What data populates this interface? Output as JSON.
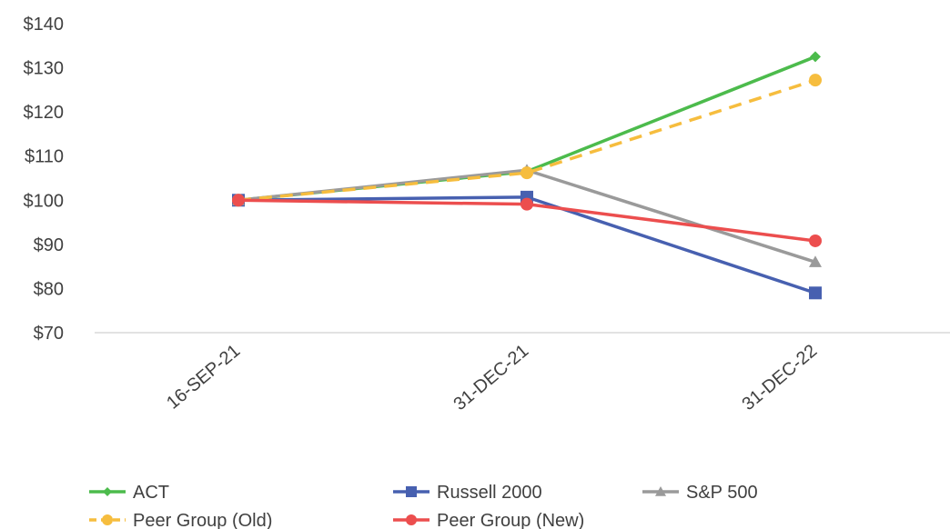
{
  "chart_data": {
    "type": "line",
    "categories": [
      "16-SEP-21",
      "31-DEC-21",
      "31-DEC-22"
    ],
    "y_tick_labels": [
      "$70",
      "$80",
      "$90",
      "$100",
      "$110",
      "$120",
      "$130",
      "$140"
    ],
    "ylim": [
      70,
      140
    ],
    "y_ticks": [
      70,
      80,
      90,
      100,
      110,
      120,
      130,
      140
    ],
    "grid": false,
    "legend_position": "bottom",
    "title": "",
    "xlabel": "",
    "ylabel": "",
    "series": [
      {
        "name": "ACT",
        "values": [
          100,
          106.5,
          132.5
        ],
        "color": "#4CBB4C",
        "marker": "diamond",
        "dash": false
      },
      {
        "name": "Russell 2000",
        "values": [
          100,
          100.7,
          79
        ],
        "color": "#4760B0",
        "marker": "square",
        "dash": false
      },
      {
        "name": "S&P 500",
        "values": [
          100,
          106.8,
          86
        ],
        "color": "#9A9A9A",
        "marker": "triangle",
        "dash": false
      },
      {
        "name": "Peer Group (Old)",
        "values": [
          100,
          106.2,
          127.2
        ],
        "color": "#F6BD3E",
        "marker": "circle",
        "dash": true
      },
      {
        "name": "Peer Group (New)",
        "values": [
          100,
          99.1,
          90.8
        ],
        "color": "#EC4E4E",
        "marker": "circle",
        "dash": false
      }
    ]
  }
}
